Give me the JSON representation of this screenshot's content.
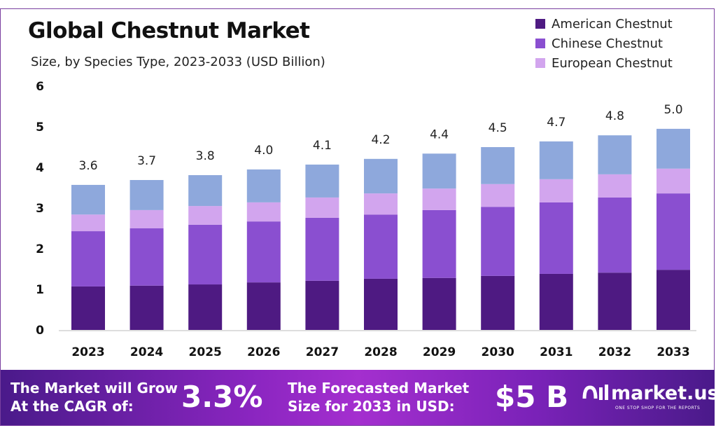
{
  "chart_data": {
    "type": "bar",
    "stacked": true,
    "title": "Global Chestnut Market",
    "subtitle": "Size, by Species Type, 2023-2033 (USD Billion)",
    "xlabel": "",
    "ylabel": "",
    "ylim": [
      0,
      6
    ],
    "yticks": [
      "0",
      "1",
      "2",
      "3",
      "4",
      "5",
      "6"
    ],
    "grid": false,
    "legend_position": "top-right",
    "categories": [
      "2023",
      "2024",
      "2025",
      "2026",
      "2027",
      "2028",
      "2029",
      "2030",
      "2031",
      "2032",
      "2033"
    ],
    "totals_labels": [
      "3.6",
      "3.7",
      "3.8",
      "4.0",
      "4.1",
      "4.2",
      "4.4",
      "4.5",
      "4.7",
      "4.8",
      "5.0"
    ],
    "series": [
      {
        "name": "American Chestnut",
        "color": "#4e1a82",
        "values": [
          1.07,
          1.09,
          1.12,
          1.17,
          1.21,
          1.26,
          1.28,
          1.33,
          1.38,
          1.41,
          1.48
        ]
      },
      {
        "name": "Chinese Chestnut",
        "color": "#8a4fd0",
        "values": [
          1.36,
          1.41,
          1.47,
          1.5,
          1.55,
          1.58,
          1.67,
          1.7,
          1.76,
          1.85,
          1.88
        ]
      },
      {
        "name": "European Chestnut",
        "color": "#d2a5ee",
        "values": [
          0.41,
          0.45,
          0.46,
          0.47,
          0.5,
          0.52,
          0.53,
          0.56,
          0.57,
          0.57,
          0.61
        ]
      },
      {
        "color": "#8ea8dc",
        "values": [
          0.73,
          0.74,
          0.76,
          0.81,
          0.81,
          0.85,
          0.86,
          0.91,
          0.93,
          0.96,
          0.98
        ]
      }
    ]
  },
  "banner": {
    "cagr_text_1": "The Market will Grow",
    "cagr_text_2": "At the CAGR of:",
    "cagr_value": "3.3%",
    "forecast_text_1": "The Forecasted Market",
    "forecast_text_2": "Size for 2033 in USD:",
    "forecast_value": "$5 B",
    "logo_name": "market.us",
    "logo_tagline": "ONE STOP SHOP FOR THE REPORTS"
  }
}
